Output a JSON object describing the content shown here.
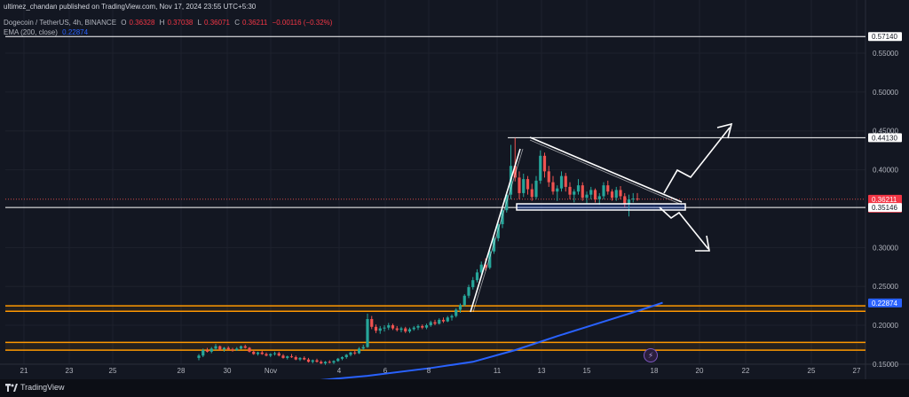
{
  "header": {
    "published": "ultimez_chandan published on TradingView.com, Nov 17, 2024 23:55 UTC+5:30",
    "symbol": "Dogecoin / TetherUS, 4h, BINANCE",
    "ohlc": {
      "o_label": "O",
      "o": "0.36328",
      "h_label": "H",
      "h": "0.37038",
      "l_label": "L",
      "l": "0.36071",
      "c_label": "C",
      "c": "0.36211",
      "change": "−0.00116 (−0.32%)"
    },
    "ema_label": "EMA (200, close)",
    "ema_value": "0.22874"
  },
  "footer": {
    "brand": "TradingView"
  },
  "colors": {
    "background": "#131722",
    "up": "#26a69a",
    "down": "#ef5350",
    "ema": "#2962ff",
    "zone": "#ff9800",
    "drawing": "#ffffff"
  },
  "icons": {
    "brand": "tradingview-logo-icon",
    "alert": "lightning-icon"
  },
  "chart_data": {
    "type": "candlestick",
    "symbol": "DOGE/USDT",
    "timeframe": "4h",
    "ylim": [
      0.14,
      0.595
    ],
    "x_ticks": [
      "21",
      "23",
      "25",
      "28",
      "30",
      "Nov",
      "4",
      "6",
      "8",
      "11",
      "13",
      "15",
      "18",
      "20",
      "22",
      "25",
      "27"
    ],
    "y_ticks": [
      "0.55000",
      "0.50000",
      "0.45000",
      "0.40000",
      "0.30000",
      "0.25000",
      "0.20000",
      "0.15000"
    ],
    "price_labels": [
      {
        "value": 0.5714,
        "text": "0.57140",
        "kind": "line"
      },
      {
        "value": 0.4413,
        "text": "0.44130",
        "kind": "line"
      },
      {
        "value": 0.36211,
        "text": "0.36211",
        "kind": "current",
        "countdown": "01:34:33"
      },
      {
        "value": 0.35146,
        "text": "0.35146",
        "kind": "line"
      },
      {
        "value": 0.22874,
        "text": "0.22874",
        "kind": "ema"
      }
    ],
    "horizontal_lines": [
      0.5714,
      0.4413,
      0.35146
    ],
    "support_zones": [
      [
        0.218,
        0.225
      ],
      [
        0.168,
        0.178
      ]
    ],
    "candles": [
      [
        0.158,
        0.163,
        0.155,
        0.161
      ],
      [
        0.161,
        0.17,
        0.159,
        0.168
      ],
      [
        0.168,
        0.171,
        0.165,
        0.166
      ],
      [
        0.166,
        0.172,
        0.164,
        0.17
      ],
      [
        0.17,
        0.176,
        0.168,
        0.173
      ],
      [
        0.173,
        0.174,
        0.167,
        0.169
      ],
      [
        0.169,
        0.172,
        0.166,
        0.171
      ],
      [
        0.171,
        0.173,
        0.168,
        0.169
      ],
      [
        0.169,
        0.171,
        0.166,
        0.168
      ],
      [
        0.168,
        0.172,
        0.167,
        0.17
      ],
      [
        0.17,
        0.174,
        0.169,
        0.173
      ],
      [
        0.173,
        0.175,
        0.17,
        0.171
      ],
      [
        0.171,
        0.172,
        0.165,
        0.166
      ],
      [
        0.166,
        0.168,
        0.162,
        0.163
      ],
      [
        0.163,
        0.166,
        0.161,
        0.165
      ],
      [
        0.165,
        0.167,
        0.162,
        0.163
      ],
      [
        0.163,
        0.165,
        0.16,
        0.161
      ],
      [
        0.161,
        0.164,
        0.159,
        0.163
      ],
      [
        0.163,
        0.166,
        0.161,
        0.164
      ],
      [
        0.164,
        0.166,
        0.16,
        0.161
      ],
      [
        0.161,
        0.163,
        0.157,
        0.158
      ],
      [
        0.158,
        0.161,
        0.156,
        0.16
      ],
      [
        0.16,
        0.163,
        0.158,
        0.159
      ],
      [
        0.159,
        0.161,
        0.155,
        0.156
      ],
      [
        0.156,
        0.159,
        0.154,
        0.158
      ],
      [
        0.158,
        0.16,
        0.155,
        0.156
      ],
      [
        0.156,
        0.158,
        0.152,
        0.153
      ],
      [
        0.153,
        0.156,
        0.151,
        0.155
      ],
      [
        0.155,
        0.157,
        0.152,
        0.153
      ],
      [
        0.153,
        0.155,
        0.15,
        0.151
      ],
      [
        0.151,
        0.154,
        0.149,
        0.153
      ],
      [
        0.153,
        0.155,
        0.151,
        0.152
      ],
      [
        0.152,
        0.155,
        0.15,
        0.154
      ],
      [
        0.154,
        0.158,
        0.153,
        0.157
      ],
      [
        0.157,
        0.16,
        0.155,
        0.159
      ],
      [
        0.159,
        0.163,
        0.157,
        0.162
      ],
      [
        0.162,
        0.166,
        0.16,
        0.165
      ],
      [
        0.165,
        0.168,
        0.162,
        0.164
      ],
      [
        0.164,
        0.172,
        0.163,
        0.17
      ],
      [
        0.17,
        0.175,
        0.168,
        0.172
      ],
      [
        0.172,
        0.215,
        0.171,
        0.208
      ],
      [
        0.208,
        0.212,
        0.195,
        0.198
      ],
      [
        0.198,
        0.201,
        0.19,
        0.193
      ],
      [
        0.193,
        0.199,
        0.189,
        0.196
      ],
      [
        0.196,
        0.2,
        0.192,
        0.197
      ],
      [
        0.197,
        0.203,
        0.194,
        0.2
      ],
      [
        0.2,
        0.202,
        0.194,
        0.196
      ],
      [
        0.196,
        0.199,
        0.192,
        0.194
      ],
      [
        0.194,
        0.198,
        0.191,
        0.196
      ],
      [
        0.196,
        0.198,
        0.19,
        0.192
      ],
      [
        0.192,
        0.197,
        0.19,
        0.195
      ],
      [
        0.195,
        0.199,
        0.193,
        0.197
      ],
      [
        0.197,
        0.201,
        0.194,
        0.199
      ],
      [
        0.199,
        0.201,
        0.195,
        0.197
      ],
      [
        0.197,
        0.202,
        0.195,
        0.2
      ],
      [
        0.2,
        0.206,
        0.198,
        0.204
      ],
      [
        0.204,
        0.207,
        0.2,
        0.202
      ],
      [
        0.202,
        0.209,
        0.201,
        0.207
      ],
      [
        0.207,
        0.21,
        0.203,
        0.205
      ],
      [
        0.205,
        0.212,
        0.204,
        0.21
      ],
      [
        0.21,
        0.214,
        0.206,
        0.212
      ],
      [
        0.212,
        0.222,
        0.21,
        0.22
      ],
      [
        0.22,
        0.228,
        0.216,
        0.226
      ],
      [
        0.226,
        0.24,
        0.224,
        0.238
      ],
      [
        0.238,
        0.252,
        0.235,
        0.249
      ],
      [
        0.249,
        0.262,
        0.246,
        0.258
      ],
      [
        0.258,
        0.272,
        0.255,
        0.268
      ],
      [
        0.268,
        0.282,
        0.264,
        0.278
      ],
      [
        0.278,
        0.286,
        0.27,
        0.274
      ],
      [
        0.274,
        0.298,
        0.272,
        0.295
      ],
      [
        0.295,
        0.315,
        0.292,
        0.312
      ],
      [
        0.312,
        0.335,
        0.308,
        0.33
      ],
      [
        0.33,
        0.352,
        0.325,
        0.348
      ],
      [
        0.348,
        0.372,
        0.345,
        0.368
      ],
      [
        0.368,
        0.432,
        0.362,
        0.405
      ],
      [
        0.405,
        0.441,
        0.385,
        0.39
      ],
      [
        0.39,
        0.398,
        0.362,
        0.37
      ],
      [
        0.37,
        0.395,
        0.365,
        0.388
      ],
      [
        0.388,
        0.392,
        0.368,
        0.375
      ],
      [
        0.375,
        0.382,
        0.36,
        0.365
      ],
      [
        0.365,
        0.392,
        0.362,
        0.386
      ],
      [
        0.386,
        0.425,
        0.382,
        0.418
      ],
      [
        0.418,
        0.422,
        0.39,
        0.398
      ],
      [
        0.398,
        0.405,
        0.378,
        0.384
      ],
      [
        0.384,
        0.392,
        0.368,
        0.372
      ],
      [
        0.372,
        0.38,
        0.36,
        0.376
      ],
      [
        0.376,
        0.398,
        0.372,
        0.392
      ],
      [
        0.392,
        0.396,
        0.372,
        0.378
      ],
      [
        0.378,
        0.384,
        0.362,
        0.368
      ],
      [
        0.368,
        0.375,
        0.358,
        0.372
      ],
      [
        0.372,
        0.388,
        0.368,
        0.38
      ],
      [
        0.38,
        0.384,
        0.36,
        0.364
      ],
      [
        0.364,
        0.372,
        0.356,
        0.368
      ],
      [
        0.368,
        0.378,
        0.362,
        0.374
      ],
      [
        0.374,
        0.376,
        0.358,
        0.362
      ],
      [
        0.362,
        0.37,
        0.355,
        0.366
      ],
      [
        0.366,
        0.384,
        0.362,
        0.38
      ],
      [
        0.38,
        0.386,
        0.368,
        0.372
      ],
      [
        0.372,
        0.375,
        0.36,
        0.364
      ],
      [
        0.364,
        0.378,
        0.36,
        0.374
      ],
      [
        0.374,
        0.379,
        0.362,
        0.366
      ],
      [
        0.366,
        0.37,
        0.352,
        0.356
      ],
      [
        0.356,
        0.368,
        0.34,
        0.362
      ],
      [
        0.362,
        0.37,
        0.358,
        0.363
      ],
      [
        0.363,
        0.37,
        0.36,
        0.362
      ]
    ],
    "ema200": [
      [
        0,
        0.118
      ],
      [
        20,
        0.125
      ],
      [
        40,
        0.135
      ],
      [
        55,
        0.145
      ],
      [
        65,
        0.153
      ],
      [
        75,
        0.168
      ],
      [
        85,
        0.186
      ],
      [
        95,
        0.203
      ],
      [
        105,
        0.22
      ],
      [
        110,
        0.229
      ]
    ]
  }
}
